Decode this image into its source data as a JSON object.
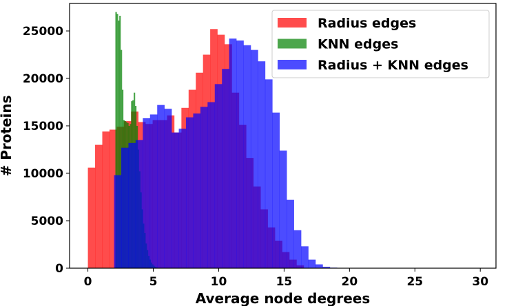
{
  "chart_data": {
    "type": "histogram",
    "xlabel": "Average node degrees",
    "ylabel": "# Proteins",
    "xlim": [
      -1.4,
      31.2
    ],
    "ylim": [
      0,
      27900
    ],
    "xticks": [
      0,
      5,
      10,
      15,
      20,
      25,
      30
    ],
    "yticks": [
      0,
      5000,
      10000,
      15000,
      20000,
      25000
    ],
    "legend_position": "top-right",
    "alpha": 0.7,
    "series": [
      {
        "name": "Radius edges",
        "color": "#ff0000",
        "bin_edges": [
          0,
          0.55,
          1.1,
          1.65,
          2.2,
          2.75,
          3.3,
          3.85,
          4.4,
          4.95,
          5.5,
          6.05,
          6.6,
          7.15,
          7.7,
          8.25,
          8.8,
          9.35,
          9.9,
          10.45,
          11.0,
          11.55,
          12.1,
          12.65,
          13.2,
          13.75,
          14.3,
          14.85,
          15.4,
          15.95,
          16.5
        ],
        "values": [
          10600,
          13000,
          14400,
          14600,
          14900,
          15500,
          16500,
          15400,
          15200,
          15600,
          15600,
          16100,
          14300,
          16900,
          18800,
          20600,
          22500,
          25200,
          24600,
          23600,
          18500,
          15100,
          11600,
          8600,
          6200,
          4300,
          2900,
          1700,
          900,
          300
        ]
      },
      {
        "name": "KNN edges",
        "color": "#008000",
        "bin_edges": [
          2.1,
          2.2,
          2.3,
          2.4,
          2.5,
          2.6,
          2.7,
          2.8,
          2.9,
          3.0,
          3.1,
          3.2,
          3.3,
          3.4,
          3.5,
          3.6,
          3.7,
          3.8,
          3.9,
          4.0,
          4.1,
          4.2,
          4.3,
          4.4,
          4.5,
          4.6,
          4.7,
          4.8,
          4.9,
          5.0,
          5.1,
          5.2,
          5.3,
          5.4
        ],
        "values": [
          27000,
          26800,
          26100,
          26600,
          23000,
          18800,
          15600,
          15500,
          15400,
          15300,
          15000,
          15200,
          17600,
          17700,
          18500,
          17100,
          15000,
          12500,
          10200,
          8000,
          6200,
          4700,
          3700,
          2600,
          1900,
          1300,
          900,
          600,
          400,
          250,
          150,
          80,
          30
        ]
      },
      {
        "name": "Radius + KNN edges",
        "color": "#0000ff",
        "bin_edges": [
          2.0,
          2.55,
          3.1,
          3.65,
          4.2,
          4.75,
          5.3,
          5.85,
          6.4,
          6.95,
          7.5,
          8.05,
          8.6,
          9.15,
          9.7,
          10.25,
          10.8,
          11.35,
          11.9,
          12.45,
          13.0,
          13.55,
          14.1,
          14.65,
          15.2,
          15.75,
          16.3,
          16.85,
          17.4,
          17.95,
          18.5,
          19.05,
          19.6,
          20.15,
          20.7
        ],
        "values": [
          9800,
          12700,
          13200,
          13500,
          15800,
          16200,
          17200,
          16800,
          14300,
          14700,
          15900,
          16300,
          17000,
          17500,
          19400,
          21000,
          24200,
          24000,
          23500,
          23000,
          21800,
          19900,
          16400,
          12400,
          7200,
          4000,
          2300,
          900,
          400,
          150,
          60,
          20,
          5,
          1
        ]
      }
    ]
  }
}
